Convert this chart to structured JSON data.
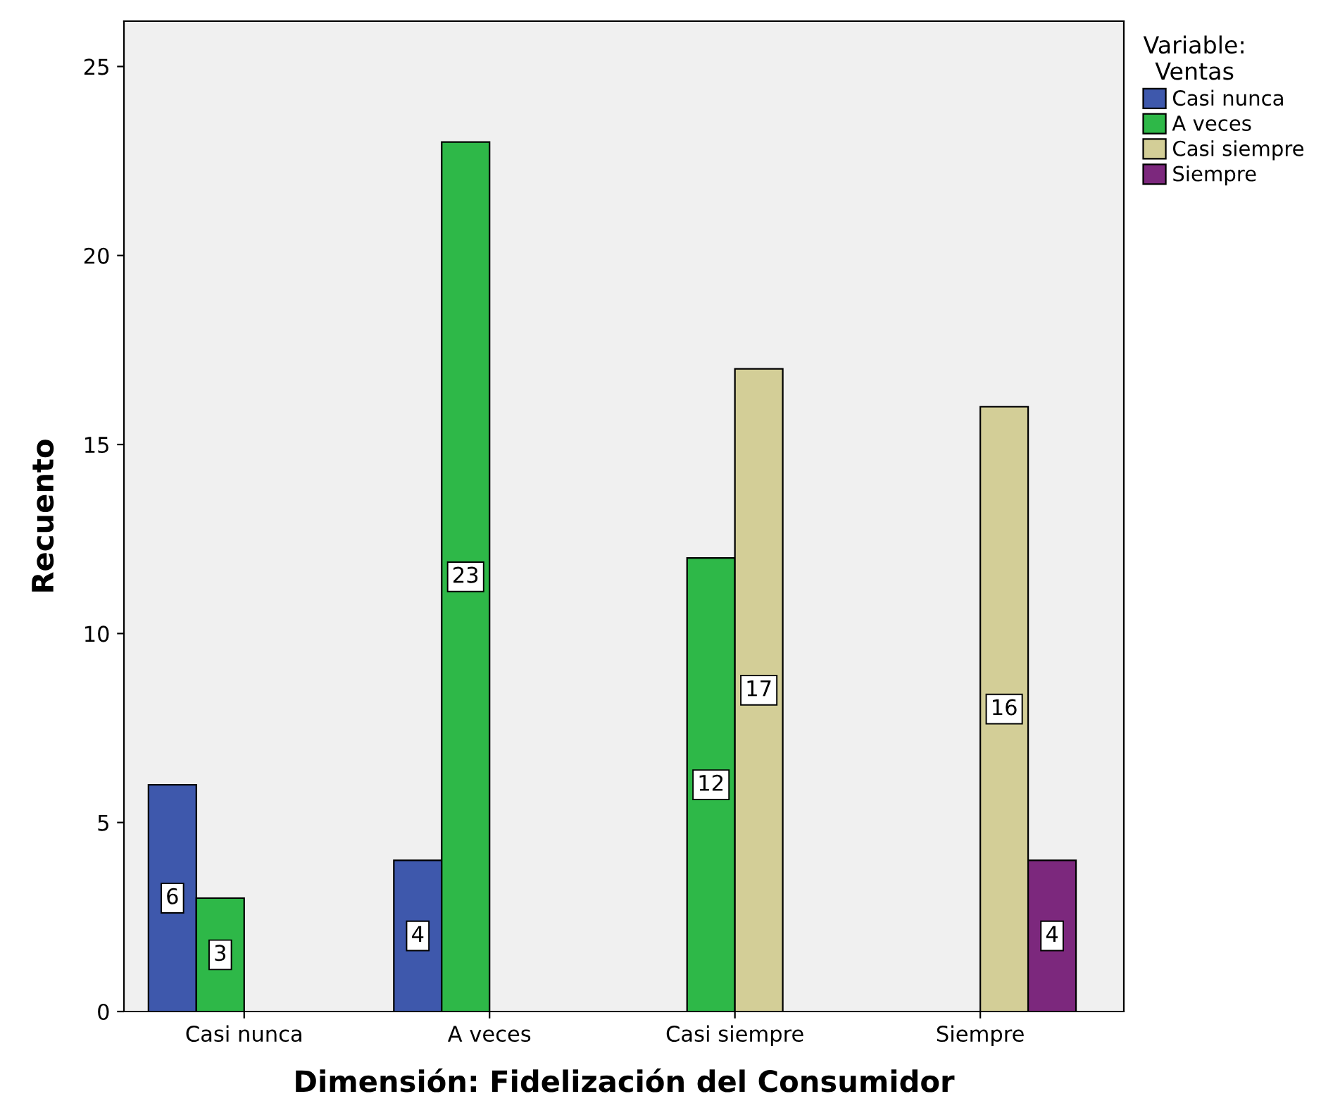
{
  "chart_data": {
    "type": "bar",
    "xlabel": "Dimensión: Fidelización del Consumidor",
    "ylabel": "Recuento",
    "legend_title": "Variable:\nVentas",
    "categories": [
      "Casi nunca",
      "A veces",
      "Casi siempre",
      "Siempre"
    ],
    "series": [
      {
        "name": "Casi nunca",
        "color": "#3e58ac",
        "values": [
          6,
          4,
          null,
          null
        ]
      },
      {
        "name": "A veces",
        "color": "#2eb848",
        "values": [
          3,
          23,
          12,
          null
        ]
      },
      {
        "name": "Casi siempre",
        "color": "#d3ce97",
        "values": [
          null,
          null,
          17,
          16
        ]
      },
      {
        "name": "Siempre",
        "color": "#7c287d",
        "values": [
          null,
          null,
          null,
          4
        ]
      }
    ],
    "ylim": [
      0,
      26.2
    ],
    "yticks": [
      0,
      5,
      10,
      15,
      20,
      25
    ],
    "grid": false,
    "legend": "right",
    "data_labels": true
  }
}
